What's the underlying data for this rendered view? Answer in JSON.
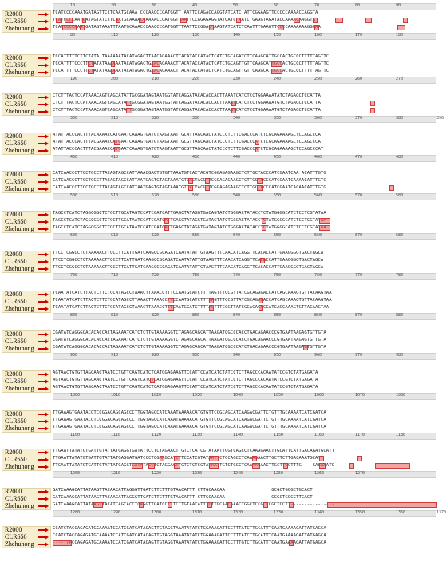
{
  "labels": [
    "R2000",
    "CLR650",
    "Zhehuhong"
  ],
  "blocks": [
    {
      "top_ticks": [
        "10",
        "20",
        "30",
        "40",
        "50",
        "60",
        "70",
        "80",
        "90"
      ],
      "seqs": [
        "TCATCCCCAAATGATAGTTCCTCAATGCAAA CCCAACCCGATGGTT AATTCCAGACCAGGTATCATC ATTCGGAAGTTCCCCCAAAACCAGGTA",
        "TCATCCCCAATGATAGTATCCTCAATGCAAAACCAAAACCGATGGTTAATTCCAGAGAGGTATCATC AATCTGAAGTAGATACCAAAACAAGGTA",
        "TCATCCCCAAATGATAGTAAATTTAATGCAAACCCAACCCGATGGTTTAATTCCGGAC AAGTATCATCTCAATTTGAAGTTCCCCAAAAAAAGGGAA"
      ],
      "bottom_ticks": [
        "80",
        "110",
        "120",
        "130",
        "140",
        "150",
        "160",
        "170",
        "180"
      ]
    },
    {
      "seqs": [
        "TCCATTTTTCTTCTATA TAAAAAATACATAGACTTAACAGAAACTTACATACCATACTCATCTGCAGATCTTCAAGCATTGCCACTGCCCTTTTTAGTTC",
        "TCCATTTTCCCTTCTATATAAAAAATACATAGACTGAACAGAAACTTACATACCATACTCATCTGCAGTTGTTCAAGCATTGCCACTGCCCTTTTTAGTTC",
        "TCCATTTTCCCTTCTATATAAAAAATACATAGACTGAACAGAAACTTACATACCATACTCATCTGCAGTTGTTCAAGCATTGCCACTGCCCTTTTTAGTTC"
      ],
      "bottom_ticks": [
        "190",
        "200",
        "210",
        "220",
        "230",
        "240",
        "250",
        "260",
        "270"
      ]
    },
    {
      "seqs": [
        "CTCTTTACTCCATAAACAGTCAGCATATTGCGGATAGTAATGGTATCAGGATACACACCACTTAAATCATCTCCTGGAAAATATCTAGAGCTCCATTA",
        "CTCTTTACTCCATAAACAGTCAGCATATTGCGGATAGTAATGGTATCAGGATACACACCACTTAAATCATCTCCTGGAAAATGTCTAGAGCTCCATTA",
        "CTCTTTACTCCATAAACAGTCAGCATATTGCGGATAGTAATGGTATCAGGATACACACCACTTAAATCATCTCCTGGAAAATGTCTAGAGCTCCATTA"
      ],
      "bottom_ticks": [
        "300",
        "310",
        "320",
        "330",
        "340",
        "350",
        "360",
        "370",
        "380",
        "390"
      ]
    },
    {
      "seqs": [
        "ATATTACCCACTTTACAAAACCATGAATCAAAGTGATGTAAGTAATTGCATTAGCAACTATCCCTCTTCGACCCATCTCGCAGAAAAGCTCCAGCCCAT",
        "ATATTACCCACTTTACGAAACCATGAATCAAAGTGATGTAAGTAATTGCGTTAGCAACTATCCCTCTTCGACCCATCTCGCAGAAAAGCTCCAGCCCAT",
        "ATATTACCCACTTTACGAAACCATGAATCAAAGTGATGTAAGTAATTGCGTTAGCAACTATCCCTCTTCGACCCATCTCGCAGAAAAGCTCCAGCCCAT"
      ],
      "bottom_ticks": [
        "400",
        "410",
        "420",
        "430",
        "440",
        "450",
        "460",
        "470",
        "480"
      ]
    },
    {
      "seqs": [
        "CATCAACCCTTCCTGCCTTACAGTAGCCATTAAACGAGTGTGTTAAATGTCACTACGTCGGAGAGAAGCTCTTGCTACCCATCGAATCAA ACATTTGTG",
        "CATCAACCCTTCCTGCCTTACAGTAGCCATTAATGAGTGTAGTAAATGTCACTACGTTCGGAGAGAAGCTCTTGCTACCCATCGAATCAAAACATTTGTG",
        "CATCAACCCTTCCTGCCTTACAGTAGCCATTAATGAGTGTAGTAAATGTCACTACGTTCGGAGAGAAGCTCTTGCTACCCATCGAATCACAACATTTGTG"
      ],
      "bottom_ticks": [
        "500",
        "510",
        "520",
        "530",
        "540",
        "550",
        "560",
        "570",
        "580"
      ]
    },
    {
      "seqs": [
        "TAGCCTCATCTAGGCGGCTCTGCTTGCATAGTCCATCGATCATTGAGCTATAGGTGACAGTATCTGGGACTATACCTCTATGGGGCATCTCCTCGTATAA",
        "TAGCCTCATCTAGGCGGCTCTGCTTGCATAATCCATCGATCATTGAGCTATAGGTGATAGTATCTGGGACTATACCTCTATGGGGCATCTCCTCGTATAA",
        "TAGCCTCATCTAGGCGGCTCTGCTTGCATAATCCATCGATCATTGAGCTATAGGTGATAGTATCTGGGACTATACCTCTATGGGGCATCTCCTCGTATAA"
      ],
      "bottom_ticks": [
        "600",
        "610",
        "620",
        "630",
        "640",
        "650",
        "660",
        "670",
        "680"
      ]
    },
    {
      "seqs": [
        "TTCCTCGGCCTCTAAAAACTTCCCTTCATTGATCAAGCCGCAGATCAATATATTGTAAGTTTCAACATCAGGTTCACACCATTGAAGGGGTGACTAGCA",
        "TTCCTCGGCCTCTAAAAACTTCCCTTCATTGATCAAGCCGCAGATCAATATATTGTAAGTTTCAACATCAGGTTCACACCATTGAAGGGGTGACTAGCA",
        "TTCCTCGGCCTCTAAAAACTTCCCTTCATTGATCAAGCCGCAGATCAATATATTGTAAGTTTCAACATCAGGTTCACACCATTGAAGGGGTGACTAGCA"
      ],
      "bottom_ticks": [
        "700",
        "710",
        "720",
        "730",
        "740",
        "750",
        "760",
        "770",
        "780"
      ]
    },
    {
      "seqs": [
        "TCAATATCATCTTACTCTTCTGCATAGCCTAAACTTAAACCTTTCCAATGCATCTTTTAGTTTCCGTTATCGCAGAGACCATCAGCAAAGTGTTACAAGTAA",
        "TCAATATCATCTTACTCTTCTGCATAGCCTTAAACTTAAACCTTCCAATGCATCTTTTAGTTTCCGTTATCGCAGAGACCATCAGCAAAGTGTTACAAGTAA",
        "TCAATATCATCTTACTCTTCTGCATAGCCTAAACTTAAACCTTCCAATGCATCTTTTAGTTTCCGTTATCGCAGAGACCATCAGCAAAGTGTTACAAGTAA"
      ],
      "bottom_ticks": [
        "800",
        "810",
        "820",
        "830",
        "840",
        "850",
        "860",
        "870",
        "880"
      ]
    },
    {
      "seqs": [
        "CGATATCAGGGCACACACCACTAGAAATCATCTCTTGTAAAAGGTCTAGAGCAGCATTAAGATCGCCCACCTGACAGAACCCGTGAATAAGAGTGTTGTA",
        "CGATATCAGGGCACACACCACTAGAAATCATCTCTTGTAAAAGGTCTAGAGCAGCATTAAGATCGCCCACCTGACAGAACCCGTGAATAAGAGTGTTGTA",
        "CGATATCAGGGCACACACCACTAGAAATCATCTCTTGTAAAAGGTCTAGAGCAGCATTAAGATCGCCCATCTGACAGAACCCGTGAATAAGAGTGTTGTA"
      ],
      "bottom_ticks": [
        "900",
        "910",
        "920",
        "930",
        "940",
        "950",
        "960",
        "970",
        "980"
      ]
    },
    {
      "seqs": [
        "AGTAACTGTGTTAGCAACTAATCCTGTTCAGTCATCTCATGGAGAAGTTCCATTCCATCATCTATCCTCTTAGCCCACAATATCCGTCTATGAGATA",
        "AGTAACTGTGTTAGCAACTAATCCTGTTCAGTCATCTCATGGAGAAGTTCCATTCCATCATCTATCCTCTTAGCCCACAATATCCGTCTATGAGATA",
        "AGTAACTGTGTTAGCAACTAATCCTGTTCAGTCATCTCATGGAGAAGTTCCATTCCATCATCTATCCTCTTAGCCCACAATATCCGTCTATGAGATA"
      ],
      "bottom_ticks": [
        "1000",
        "1010",
        "1020",
        "1030",
        "1040",
        "1050",
        "1060",
        "1070",
        "1080"
      ]
    },
    {
      "seqs": [
        "TTGAAAGTGAATACGTCCGGAGAGCAGCCCTTGGTAGCCATCAAATAAAAACATGTGTTCCGCAGCATCAAGACGATTCTGTTTGCAAAATCATCGATCA",
        "TTGAAAGTGAATACGTCCGGAGAGCAGCCCTTGGTAGCCATCAAATAAAAACATGTGTTCCGCAGCATCAAGACGATTCTGTTTGCAAAATCATCGATCA",
        "TTGAAAGTGAATACGTCCGGAGAGCAGCCCTTGGTAGCCATCAAATAAAAACATGTGTTCCGCAGCATCAAGACGATTCTGTTTGCAAAATCATCGATCA"
      ],
      "bottom_ticks": [
        "1100",
        "1110",
        "1120",
        "1130",
        "1140",
        "1150",
        "1160",
        "1170",
        "1180"
      ]
    },
    {
      "seqs": [
        "TTGAATTATATGTGATTGTATTATGAGGTGATATTCCTCTAGAACTTGTCTCATCGTATAATTGGTCAGCCTCAAAGAACTTGCATTCATTGACAAATGCATT",
        "TTGAATTATATGTGATTGTATTATGAGGATGATCCCTCGAAGCATCTTCCATCGTATAATTCTGCAGCCTCAAAGAACTTGCTTCTTGACAAATGCATT",
        "TTGAATTATATGTGATTGTATTATGAGGTGATATACCTCTAGGAGTTGTCTCTCGTATAATTGTCTGCCTCAAAAGAACTTGCTTGCTTTG    GACAAATG"
      ],
      "bottom_ticks": [
        "1200",
        "1210",
        "1220",
        "1230",
        "1240",
        "1250",
        "1260",
        "1270"
      ]
    },
    {
      "seqs": [
        "GATCAAAGCATTATAAGTTACAACATTAGGGTTGATCTTCTTTGTAACATTT CTTGCAACAA                 GCGCTGGGCTGCACT",
        "GATCAAAGCATTATAAGTTACAACATTAGGGTTGATCTTCTTTGTAACATTT CTTGCAACAA                 GCGCTGGGCTTCACT",
        "GATCAAAGCATTATAAGTTACATCAGCACCTGAGGTTGATCCTTTCTTGTAACATTTCTTGCAACAAACTGGCTCCGCTCGCTCCTT----------------"
      ],
      "bottom_ticks": [
        "1280",
        "1290",
        "1300",
        "1310",
        "1320",
        "1330",
        "1340",
        "1350",
        "1360",
        "1370"
      ]
    },
    {
      "seqs": [
        "CCATCTACCAGAGATGCAAAATCCATCGATCATACAGTTGTAGGTAAATATATCTGGAAAGATTCCTTTATCTTGCATTTCAATGAAAAGATTATGAGCA",
        "CCATCTACCAGAGATGCAAAATCCATCGATCATACAGTTGTAGGTAAATATATCTGGAAAGATTCCTTTATCTTGCATTTCAATGAAAAGATTATGAGCA",
        "-----TACCAGAGATGCAAAATCCATCGATCATACAGTTGTAGGTAAATATATCTGGAAAGATTCCTTTGTCTTGCATTTCAATGAAAAGATTATGAGCA"
      ]
    }
  ]
}
